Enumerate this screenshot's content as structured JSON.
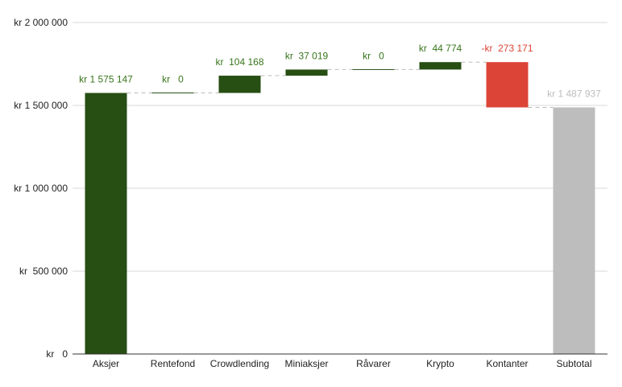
{
  "chart_data": {
    "type": "waterfall",
    "categories": [
      "Aksjer",
      "Rentefond",
      "Crowdlending",
      "Miniaksjer",
      "Råvarer",
      "Krypto",
      "Kontanter",
      "Subtotal"
    ],
    "values": [
      1575147,
      0,
      104168,
      37019,
      0,
      44774,
      -273171,
      1487937
    ],
    "kinds": [
      "start",
      "delta",
      "delta",
      "delta",
      "delta",
      "delta",
      "delta",
      "total"
    ],
    "data_labels": [
      "kr 1 575 147",
      "kr   0",
      "kr  104 168",
      "kr  37 019",
      "kr   0",
      "kr  44 774",
      "-kr  273 171",
      "kr 1 487 937"
    ],
    "ylim": [
      0,
      2000000
    ],
    "yticks": [
      0,
      500000,
      1000000,
      1500000,
      2000000
    ],
    "ytick_labels": [
      "kr   0",
      "kr  500 000",
      "kr 1 000 000",
      "kr 1 500 000",
      "kr 2 000 000"
    ],
    "grid": true,
    "colors": {
      "increase": "#274e13",
      "decrease": "#db4437",
      "total": "#bdbdbd",
      "increase_label": "#38761d",
      "decrease_label": "#db4437",
      "total_label": "#bdbdbd"
    }
  }
}
